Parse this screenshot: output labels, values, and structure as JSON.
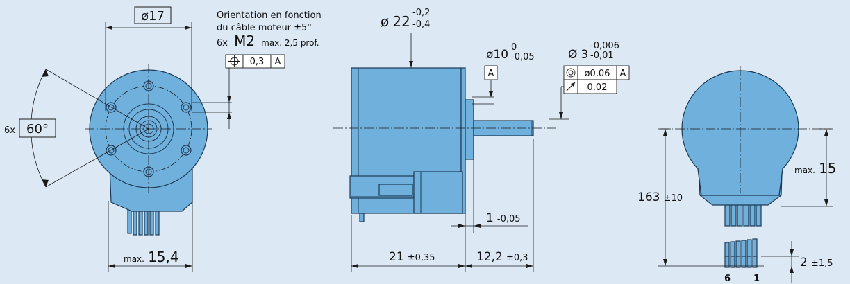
{
  "front_view": {
    "diameter_label": "ø17",
    "orientation_note_line1": "Orientation en fonction",
    "orientation_note_line2": "du câble moteur ±5°",
    "thread_prefix": "6x",
    "thread_size": "M2",
    "thread_note": "max. 2,5 prof.",
    "position_tolerance": "0,3",
    "datum": "A",
    "angle_prefix": "6x",
    "angle": "60°",
    "width_prefix": "max.",
    "width_value": "15,4"
  },
  "side_view": {
    "body_dia_symbol": "ø",
    "body_dia_value": "22",
    "body_dia_tol_upper": "-0,2",
    "body_dia_tol_lower": "-0,4",
    "pilot_dia": "ø10",
    "pilot_tol_upper": "0",
    "pilot_tol_lower": "-0,05",
    "shaft_dia_symbol": "Ø",
    "shaft_dia_value": "3",
    "shaft_tol_upper": "-0,006",
    "shaft_tol_lower": "-0,01",
    "datum": "A",
    "concentricity_value": "ø0,06",
    "concentricity_datum": "A",
    "runout_value": "0,02",
    "flange_thickness": "1",
    "flange_tol": "-0,05",
    "body_length": "21",
    "body_length_tol": "±0,35",
    "shaft_length": "12,2",
    "shaft_length_tol": "±0,3"
  },
  "rear_view": {
    "height_prefix": "max.",
    "height_value": "15",
    "cable_length": "163",
    "cable_length_tol": "±10",
    "strip_length": "2",
    "strip_tol": "±1,5",
    "pin_first": "6",
    "pin_last": "1"
  }
}
